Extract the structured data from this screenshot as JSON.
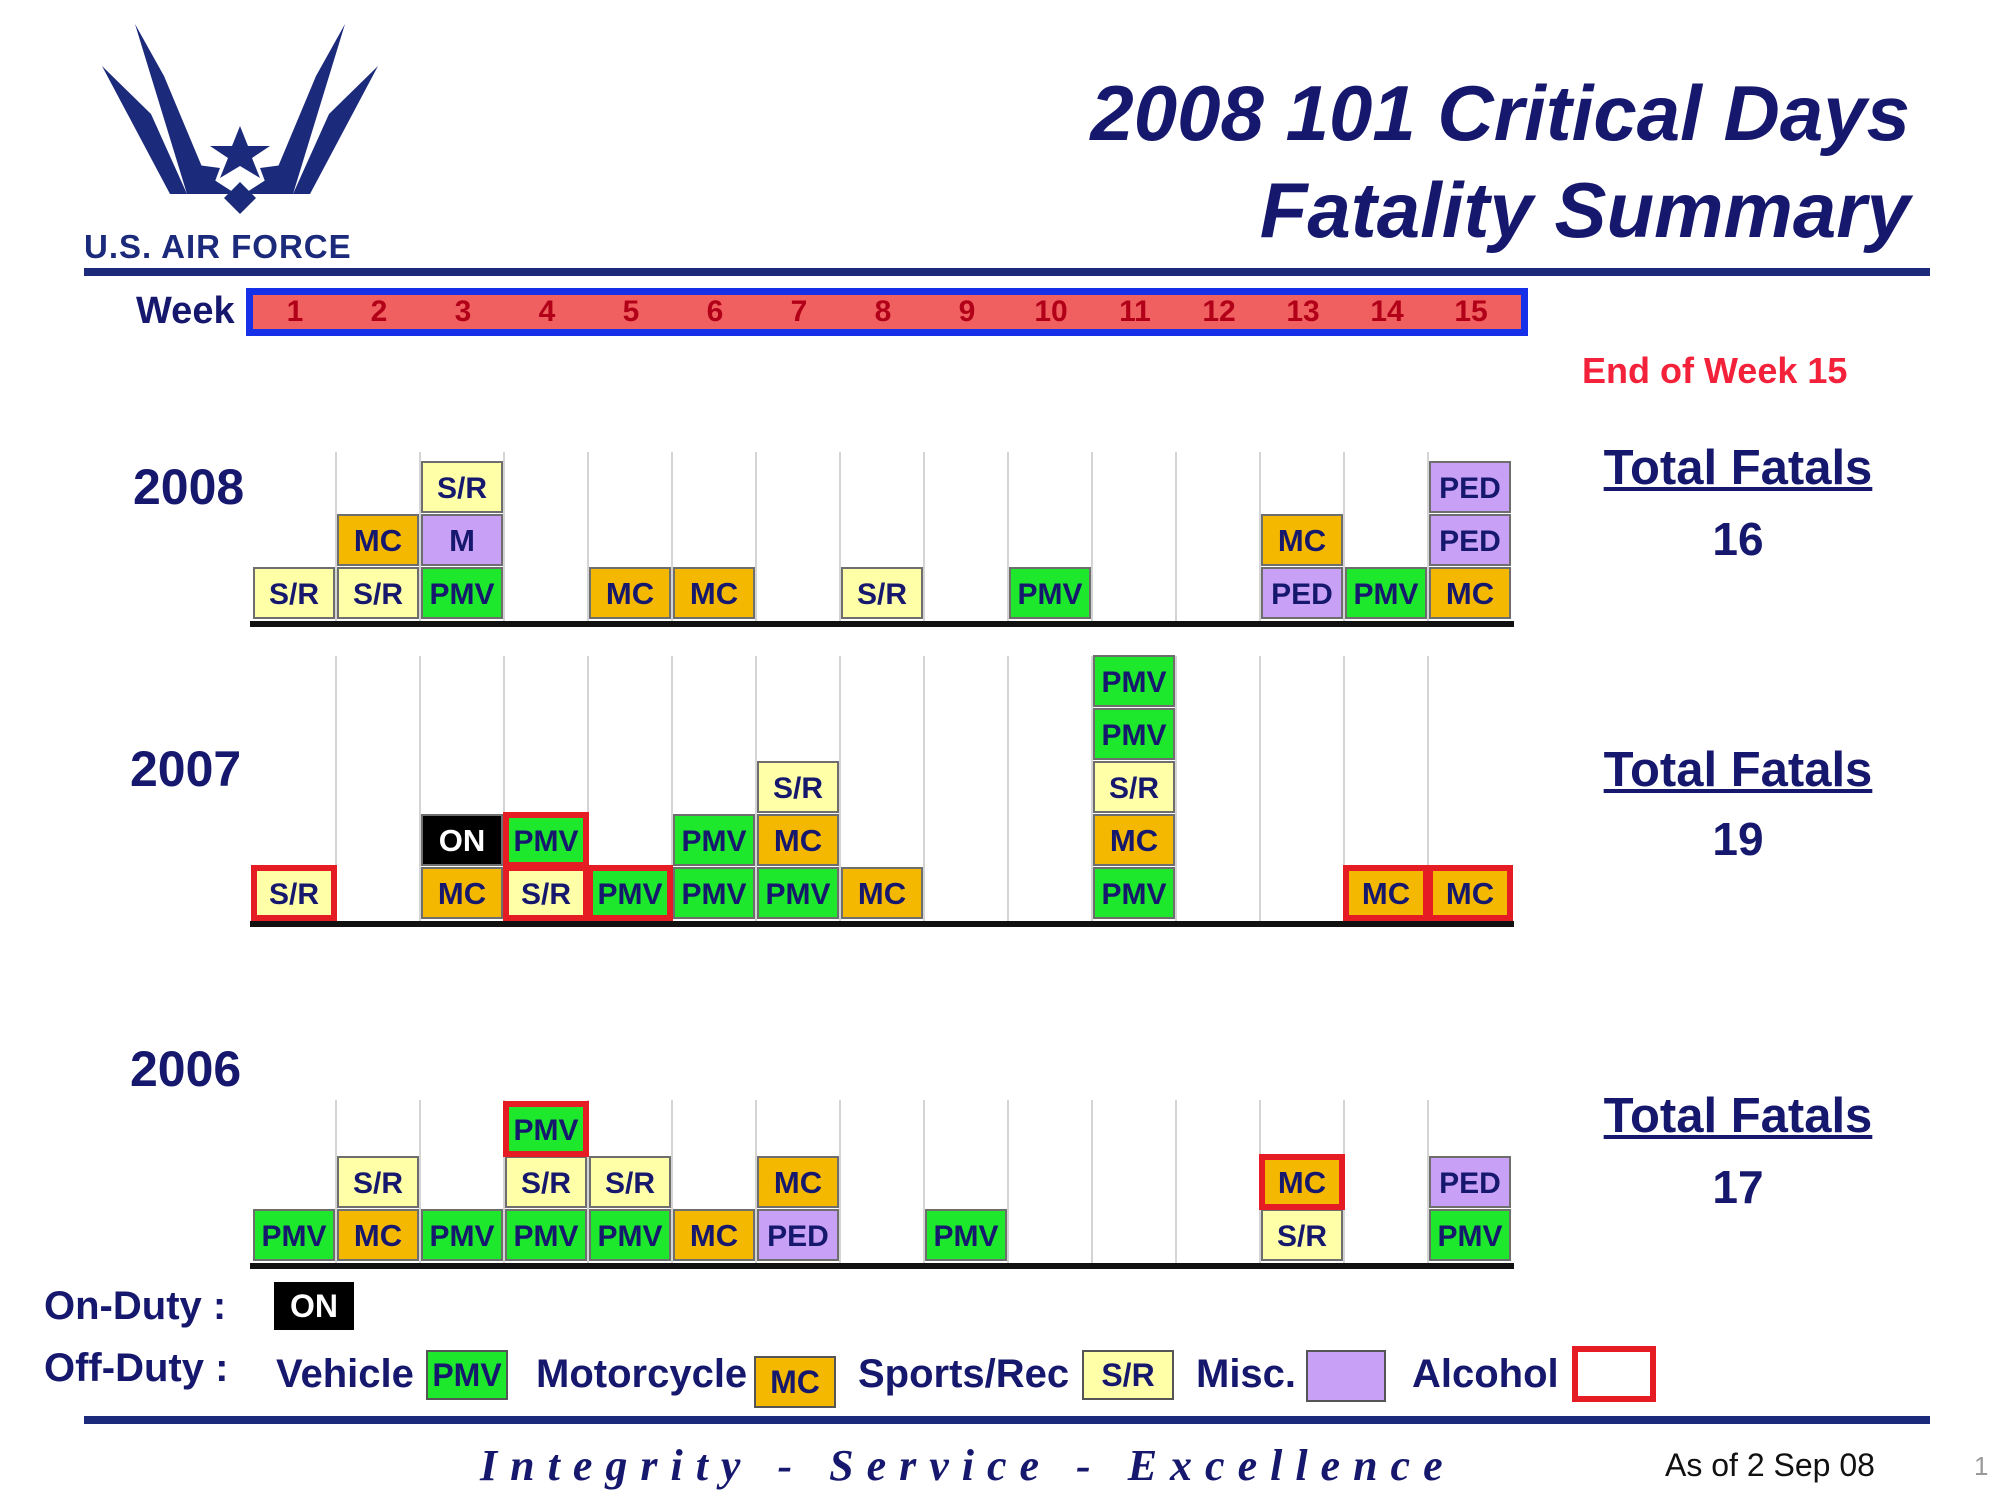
{
  "header": {
    "org_name": "U.S. AIR FORCE",
    "title_line1": "2008 101 Critical Days",
    "title_line2": "Fatality Summary"
  },
  "week_label": "Week",
  "weeks": [
    "1",
    "2",
    "3",
    "4",
    "5",
    "6",
    "7",
    "8",
    "9",
    "10",
    "11",
    "12",
    "13",
    "14",
    "15"
  ],
  "end_of_week": "End of Week 15",
  "totals_label": "Total Fatals",
  "colors": {
    "PMV": "#1ee82c",
    "MC": "#f5b800",
    "S/R": "#ffffa8",
    "M": "#c8a0f5",
    "PED": "#c8a0f5",
    "ON": "#000000",
    "alcohol_border": "#e51c23",
    "week_bar_fill": "#f06060",
    "week_bar_border": "#1530e6",
    "dark_blue": "#16186e"
  },
  "chart_data": {
    "type": "stacked-blocks",
    "x_label": "Week",
    "x_categories": [
      "1",
      "2",
      "3",
      "4",
      "5",
      "6",
      "7",
      "8",
      "9",
      "10",
      "11",
      "12",
      "13",
      "14",
      "15"
    ],
    "note": "Each block is one fatality; blocks listed bottom to top within each week.",
    "years": [
      {
        "year": "2008",
        "total": "16",
        "weeks": [
          {
            "week": 1,
            "blocks": [
              {
                "label": "S/R",
                "cat": "S/R",
                "alcohol": false
              }
            ]
          },
          {
            "week": 2,
            "blocks": [
              {
                "label": "S/R",
                "cat": "S/R",
                "alcohol": false
              },
              {
                "label": "MC",
                "cat": "MC",
                "alcohol": false
              }
            ]
          },
          {
            "week": 3,
            "blocks": [
              {
                "label": "PMV",
                "cat": "PMV",
                "alcohol": false
              },
              {
                "label": "M",
                "cat": "M",
                "alcohol": false
              },
              {
                "label": "S/R",
                "cat": "S/R",
                "alcohol": false
              }
            ]
          },
          {
            "week": 4,
            "blocks": []
          },
          {
            "week": 5,
            "blocks": [
              {
                "label": "MC",
                "cat": "MC",
                "alcohol": false
              }
            ]
          },
          {
            "week": 6,
            "blocks": [
              {
                "label": "MC",
                "cat": "MC",
                "alcohol": false
              }
            ]
          },
          {
            "week": 7,
            "blocks": []
          },
          {
            "week": 8,
            "blocks": [
              {
                "label": "S/R",
                "cat": "S/R",
                "alcohol": false
              }
            ]
          },
          {
            "week": 9,
            "blocks": []
          },
          {
            "week": 10,
            "blocks": [
              {
                "label": "PMV",
                "cat": "PMV",
                "alcohol": false
              }
            ]
          },
          {
            "week": 11,
            "blocks": []
          },
          {
            "week": 12,
            "blocks": []
          },
          {
            "week": 13,
            "blocks": [
              {
                "label": "PED",
                "cat": "PED",
                "alcohol": false
              },
              {
                "label": "MC",
                "cat": "MC",
                "alcohol": false
              }
            ]
          },
          {
            "week": 14,
            "blocks": [
              {
                "label": "PMV",
                "cat": "PMV",
                "alcohol": false
              }
            ]
          },
          {
            "week": 15,
            "blocks": [
              {
                "label": "MC",
                "cat": "MC",
                "alcohol": false
              },
              {
                "label": "PED",
                "cat": "PED",
                "alcohol": false
              },
              {
                "label": "PED",
                "cat": "PED",
                "alcohol": false
              }
            ]
          }
        ]
      },
      {
        "year": "2007",
        "total": "19",
        "weeks": [
          {
            "week": 1,
            "blocks": [
              {
                "label": "S/R",
                "cat": "S/R",
                "alcohol": true
              }
            ]
          },
          {
            "week": 2,
            "blocks": []
          },
          {
            "week": 3,
            "blocks": [
              {
                "label": "MC",
                "cat": "MC",
                "alcohol": false
              },
              {
                "label": "ON",
                "cat": "ON",
                "alcohol": false
              }
            ]
          },
          {
            "week": 4,
            "blocks": [
              {
                "label": "S/R",
                "cat": "S/R",
                "alcohol": true
              },
              {
                "label": "PMV",
                "cat": "PMV",
                "alcohol": true
              }
            ]
          },
          {
            "week": 5,
            "blocks": [
              {
                "label": "PMV",
                "cat": "PMV",
                "alcohol": true
              }
            ]
          },
          {
            "week": 6,
            "blocks": [
              {
                "label": "PMV",
                "cat": "PMV",
                "alcohol": false
              },
              {
                "label": "PMV",
                "cat": "PMV",
                "alcohol": false
              }
            ]
          },
          {
            "week": 7,
            "blocks": [
              {
                "label": "PMV",
                "cat": "PMV",
                "alcohol": false
              },
              {
                "label": "MC",
                "cat": "MC",
                "alcohol": false
              },
              {
                "label": "S/R",
                "cat": "S/R",
                "alcohol": false
              }
            ]
          },
          {
            "week": 8,
            "blocks": [
              {
                "label": "MC",
                "cat": "MC",
                "alcohol": false
              }
            ]
          },
          {
            "week": 9,
            "blocks": []
          },
          {
            "week": 10,
            "blocks": []
          },
          {
            "week": 11,
            "blocks": [
              {
                "label": "PMV",
                "cat": "PMV",
                "alcohol": false
              },
              {
                "label": "MC",
                "cat": "MC",
                "alcohol": false
              },
              {
                "label": "S/R",
                "cat": "S/R",
                "alcohol": false
              },
              {
                "label": "PMV",
                "cat": "PMV",
                "alcohol": false
              },
              {
                "label": "PMV",
                "cat": "PMV",
                "alcohol": false
              }
            ]
          },
          {
            "week": 12,
            "blocks": []
          },
          {
            "week": 13,
            "blocks": []
          },
          {
            "week": 14,
            "blocks": [
              {
                "label": "MC",
                "cat": "MC",
                "alcohol": true
              }
            ]
          },
          {
            "week": 15,
            "blocks": [
              {
                "label": "MC",
                "cat": "MC",
                "alcohol": true
              }
            ]
          }
        ]
      },
      {
        "year": "2006",
        "total": "17",
        "weeks": [
          {
            "week": 1,
            "blocks": [
              {
                "label": "PMV",
                "cat": "PMV",
                "alcohol": false
              }
            ]
          },
          {
            "week": 2,
            "blocks": [
              {
                "label": "MC",
                "cat": "MC",
                "alcohol": false
              },
              {
                "label": "S/R",
                "cat": "S/R",
                "alcohol": false
              }
            ]
          },
          {
            "week": 3,
            "blocks": [
              {
                "label": "PMV",
                "cat": "PMV",
                "alcohol": false
              }
            ]
          },
          {
            "week": 4,
            "blocks": [
              {
                "label": "PMV",
                "cat": "PMV",
                "alcohol": false
              },
              {
                "label": "S/R",
                "cat": "S/R",
                "alcohol": false
              },
              {
                "label": "PMV",
                "cat": "PMV",
                "alcohol": true
              }
            ]
          },
          {
            "week": 5,
            "blocks": [
              {
                "label": "PMV",
                "cat": "PMV",
                "alcohol": false
              },
              {
                "label": "S/R",
                "cat": "S/R",
                "alcohol": false
              }
            ]
          },
          {
            "week": 6,
            "blocks": [
              {
                "label": "MC",
                "cat": "MC",
                "alcohol": false
              }
            ]
          },
          {
            "week": 7,
            "blocks": [
              {
                "label": "PED",
                "cat": "PED",
                "alcohol": false
              },
              {
                "label": "MC",
                "cat": "MC",
                "alcohol": false
              }
            ]
          },
          {
            "week": 8,
            "blocks": []
          },
          {
            "week": 9,
            "blocks": [
              {
                "label": "PMV",
                "cat": "PMV",
                "alcohol": false
              }
            ]
          },
          {
            "week": 10,
            "blocks": []
          },
          {
            "week": 11,
            "blocks": []
          },
          {
            "week": 12,
            "blocks": []
          },
          {
            "week": 13,
            "blocks": [
              {
                "label": "S/R",
                "cat": "S/R",
                "alcohol": false
              },
              {
                "label": "MC",
                "cat": "MC",
                "alcohol": true
              }
            ]
          },
          {
            "week": 14,
            "blocks": []
          },
          {
            "week": 15,
            "blocks": [
              {
                "label": "PMV",
                "cat": "PMV",
                "alcohol": false
              },
              {
                "label": "PED",
                "cat": "PED",
                "alcohol": false
              }
            ]
          }
        ]
      }
    ]
  },
  "legend": {
    "on_duty_label": "On-Duty :",
    "on_box": "ON",
    "off_duty_label": "Off-Duty :",
    "vehicle_label": "Vehicle",
    "vehicle_box": "PMV",
    "motorcycle_label": "Motorcycle",
    "motorcycle_box": "MC",
    "sports_label": "Sports/Rec",
    "sports_box": "S/R",
    "misc_label": "Misc.",
    "alcohol_label": "Alcohol"
  },
  "footer": {
    "motto": "Integrity - Service - Excellence",
    "as_of": "As of  2 Sep 08",
    "page_number": "1"
  }
}
